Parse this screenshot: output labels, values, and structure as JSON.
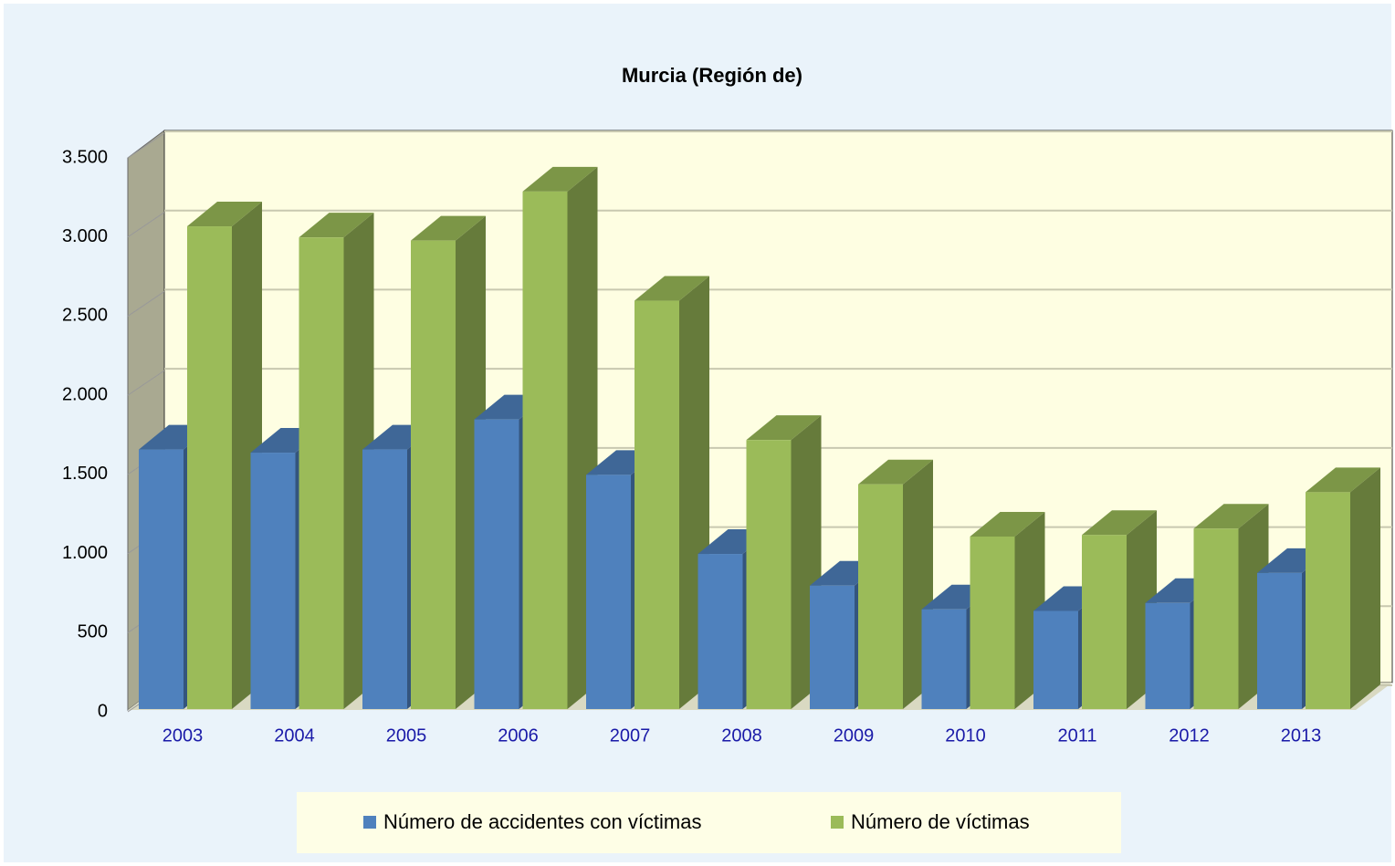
{
  "chart_data": {
    "type": "bar3d",
    "title": "Murcia (Región de)",
    "categories": [
      "2003",
      "2004",
      "2005",
      "2006",
      "2007",
      "2008",
      "2009",
      "2010",
      "2011",
      "2012",
      "2013"
    ],
    "series": [
      {
        "name": "Número de accidentes con víctimas",
        "color": "#4f81bd",
        "values": [
          1640,
          1620,
          1640,
          1830,
          1480,
          980,
          780,
          630,
          620,
          670,
          860
        ]
      },
      {
        "name": "Número de víctimas",
        "color": "#9bbb59",
        "values": [
          3050,
          2980,
          2960,
          3270,
          2580,
          1700,
          1420,
          1090,
          1100,
          1140,
          1370
        ]
      }
    ],
    "ylim": [
      0,
      3500
    ],
    "yticks": [
      0,
      500,
      {
        "value": 1000,
        "label": "1.000"
      },
      {
        "value": 1500,
        "label": "1.500"
      },
      {
        "value": 2000,
        "label": "2.000"
      },
      {
        "value": 2500,
        "label": "2.500"
      },
      {
        "value": 3000,
        "label": "3.000"
      },
      {
        "value": 3500,
        "label": "3.500"
      }
    ],
    "grid": true,
    "legend": "bottom"
  }
}
